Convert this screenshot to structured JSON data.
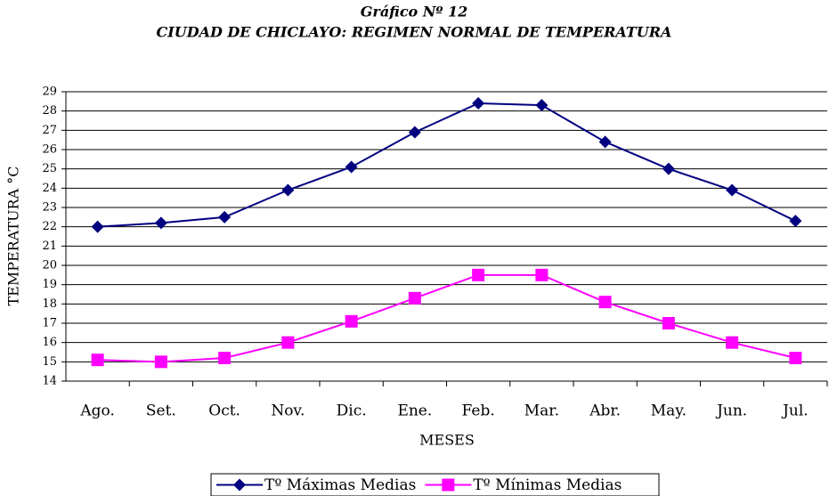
{
  "chart_data": {
    "type": "line",
    "title": "Gráfico Nº 12",
    "subtitle": "CIUDAD DE CHICLAYO: REGIMEN NORMAL DE TEMPERATURA",
    "y_label": "TEMPERATURA °C",
    "x_label": "MESES",
    "categories": [
      "Ago.",
      "Set.",
      "Oct.",
      "Nov.",
      "Dic.",
      "Ene.",
      "Feb.",
      "Mar.",
      "Abr.",
      "May.",
      "Jun.",
      "Jul."
    ],
    "series": [
      {
        "name": "Tº Máximas Medias",
        "color": "#000080",
        "marker": "diamond",
        "values": [
          22.0,
          22.2,
          22.5,
          23.9,
          25.1,
          26.9,
          28.4,
          28.3,
          26.4,
          25.0,
          23.9,
          22.3
        ]
      },
      {
        "name": "Tº Mínimas Medias",
        "color": "#ff00ff",
        "marker": "square",
        "values": [
          15.1,
          15.0,
          15.2,
          16.0,
          17.1,
          18.3,
          19.5,
          19.5,
          18.1,
          17.0,
          16.0,
          15.2
        ]
      }
    ],
    "ylim": [
      14,
      29
    ],
    "yticks": [
      14,
      15,
      16,
      17,
      18,
      19,
      20,
      21,
      22,
      23,
      24,
      25,
      26,
      27,
      28,
      29
    ],
    "grid": true,
    "legend": "bottom"
  }
}
